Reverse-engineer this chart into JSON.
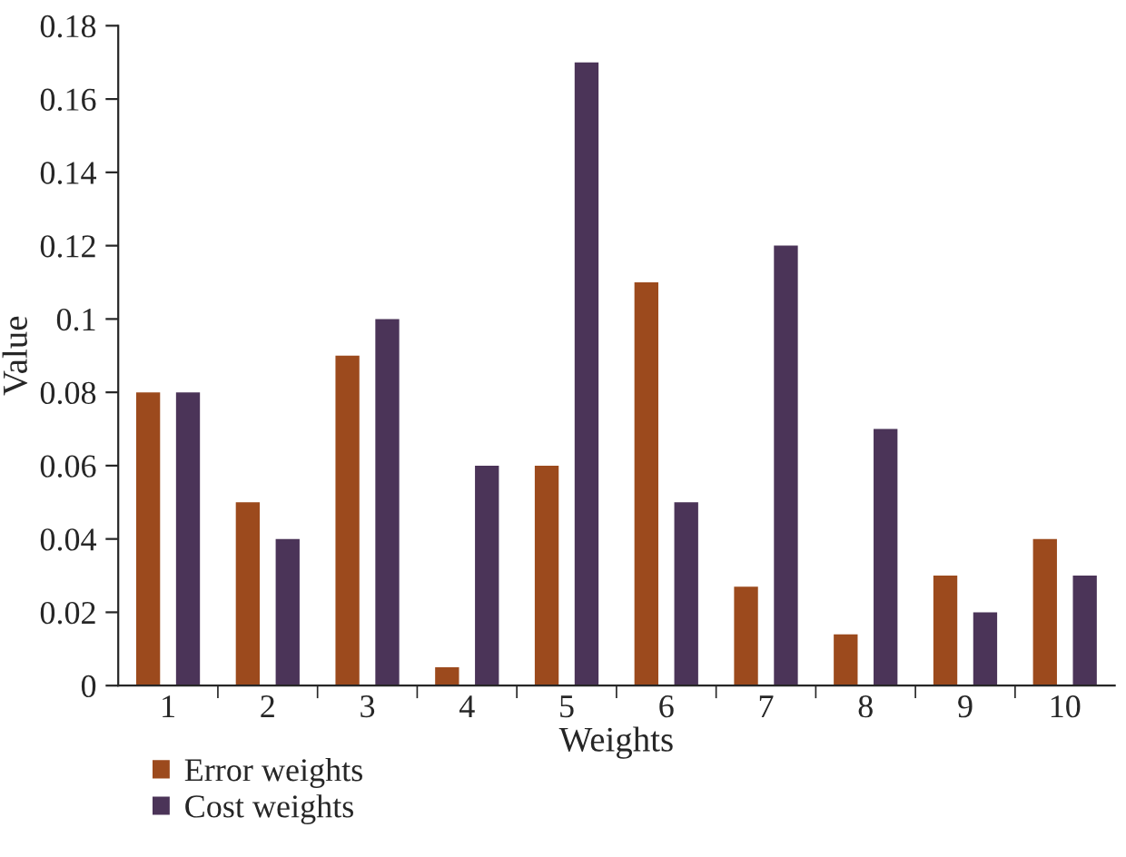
{
  "chart_data": {
    "type": "bar",
    "xlabel": "Weights",
    "ylabel": "Value",
    "categories": [
      "1",
      "2",
      "3",
      "4",
      "5",
      "6",
      "7",
      "8",
      "9",
      "10"
    ],
    "series": [
      {
        "name": "Error weights",
        "color": "#9c4a1d",
        "values": [
          0.08,
          0.05,
          0.09,
          0.005,
          0.06,
          0.11,
          0.027,
          0.014,
          0.03,
          0.04
        ]
      },
      {
        "name": "Cost weights",
        "color": "#4b3458",
        "values": [
          0.08,
          0.04,
          0.1,
          0.06,
          0.17,
          0.05,
          0.12,
          0.07,
          0.02,
          0.03
        ]
      }
    ],
    "ylim": [
      0,
      0.18
    ],
    "yticks": [
      0,
      0.02,
      0.04,
      0.06,
      0.08,
      0.1,
      0.12,
      0.14,
      0.16,
      0.18
    ],
    "grid": false,
    "legend": "bottom left"
  }
}
